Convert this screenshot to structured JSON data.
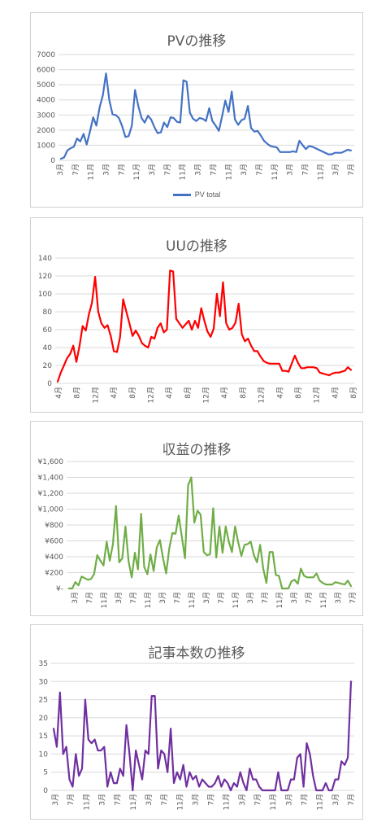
{
  "chart_data": [
    {
      "type": "line",
      "title": "PVの推移",
      "legend_position": "bottom",
      "grid": true,
      "color": "#4472c4",
      "ylim": [
        0,
        7000
      ],
      "y_ticks": [
        "0",
        "1000",
        "2000",
        "3000",
        "4000",
        "5000",
        "6000",
        "7000"
      ],
      "x_ticks": [
        "3月",
        "7月",
        "11月",
        "3月",
        "7月",
        "11月",
        "3月",
        "7月",
        "11月",
        "3月",
        "7月",
        "11月",
        "3月",
        "7月",
        "11月",
        "3月",
        "7月",
        "11月",
        "3月",
        "7月"
      ],
      "series": [
        {
          "name": "PV total",
          "values": [
            100,
            200,
            650,
            800,
            900,
            1450,
            1250,
            1750,
            1050,
            1900,
            2850,
            2300,
            3500,
            4300,
            5750,
            4000,
            3050,
            3000,
            2800,
            2250,
            1550,
            1600,
            2300,
            4650,
            3600,
            2800,
            2500,
            2950,
            2700,
            2200,
            1800,
            1850,
            2500,
            2200,
            2850,
            2800,
            2550,
            2500,
            5300,
            5200,
            3150,
            2750,
            2600,
            2800,
            2750,
            2600,
            3450,
            2600,
            2300,
            1950,
            2900,
            3950,
            3200,
            4550,
            2700,
            2350,
            2650,
            2750,
            3600,
            2150,
            1900,
            1950,
            1650,
            1300,
            1100,
            950,
            900,
            850,
            550,
            550,
            550,
            550,
            600,
            550,
            1300,
            1000,
            750,
            950,
            900,
            800,
            700,
            600,
            500,
            400,
            400,
            500,
            500,
            500,
            600,
            700,
            650
          ]
        }
      ]
    },
    {
      "type": "line",
      "title": "UUの推移",
      "grid": true,
      "color": "#ff0000",
      "ylim": [
        0,
        140
      ],
      "y_ticks": [
        "0",
        "20",
        "40",
        "60",
        "80",
        "100",
        "120",
        "140"
      ],
      "x_ticks": [
        "4月",
        "8月",
        "12月",
        "4月",
        "8月",
        "12月",
        "4月",
        "8月",
        "12月",
        "4月",
        "8月",
        "12月",
        "4月",
        "8月",
        "12月",
        "4月",
        "8月"
      ],
      "series": [
        {
          "values": [
            2,
            12,
            20,
            28,
            33,
            42,
            24,
            42,
            64,
            59,
            77,
            90,
            119,
            80,
            67,
            62,
            65,
            53,
            36,
            35,
            52,
            94,
            80,
            67,
            53,
            59,
            53,
            45,
            42,
            40,
            52,
            50,
            62,
            67,
            57,
            60,
            126,
            125,
            72,
            67,
            62,
            66,
            70,
            60,
            70,
            62,
            84,
            70,
            58,
            52,
            61,
            100,
            75,
            113,
            67,
            60,
            62,
            68,
            89,
            55,
            47,
            50,
            42,
            36,
            36,
            30,
            25,
            23,
            22,
            22,
            22,
            22,
            14,
            14,
            13,
            22,
            31,
            23,
            17,
            17,
            18,
            18,
            18,
            17,
            12,
            11,
            10,
            9,
            11,
            12,
            12,
            13,
            14,
            18,
            15
          ]
        }
      ]
    },
    {
      "type": "line",
      "title": "収益の推移",
      "grid": true,
      "color": "#70ad47",
      "ylim": [
        0,
        1600
      ],
      "y_ticks": [
        "¥-",
        "¥200",
        "¥400",
        "¥600",
        "¥800",
        "¥1,000",
        "¥1,200",
        "¥1,400",
        "¥1,600"
      ],
      "x_ticks": [
        "3月",
        "7月",
        "11月",
        "3月",
        "7月",
        "11月",
        "3月",
        "7月",
        "11月",
        "3月",
        "7月",
        "11月",
        "3月",
        "7月",
        "11月",
        "3月",
        "7月",
        "11月",
        "3月",
        "7月"
      ],
      "series": [
        {
          "values": [
            0,
            0,
            80,
            40,
            150,
            130,
            110,
            120,
            180,
            420,
            350,
            290,
            590,
            350,
            560,
            1040,
            330,
            380,
            780,
            340,
            140,
            450,
            240,
            940,
            270,
            180,
            430,
            220,
            520,
            610,
            380,
            190,
            510,
            700,
            690,
            920,
            650,
            380,
            1300,
            1400,
            830,
            980,
            930,
            460,
            420,
            430,
            1010,
            390,
            780,
            450,
            780,
            590,
            460,
            780,
            580,
            410,
            550,
            560,
            590,
            420,
            330,
            550,
            250,
            70,
            460,
            460,
            170,
            160,
            0,
            0,
            0,
            90,
            110,
            60,
            250,
            160,
            140,
            140,
            140,
            190,
            100,
            70,
            50,
            50,
            50,
            80,
            70,
            60,
            50,
            100,
            30
          ]
        }
      ]
    },
    {
      "type": "line",
      "title": "記事本数の推移",
      "grid": true,
      "color": "#7030a0",
      "ylim": [
        0,
        35
      ],
      "y_ticks": [
        "0",
        "5",
        "10",
        "15",
        "20",
        "25",
        "30",
        "35"
      ],
      "x_ticks": [
        "3月",
        "7月",
        "11月",
        "3月",
        "7月",
        "11月",
        "3月",
        "7月",
        "11月",
        "3月",
        "7月",
        "11月",
        "3月",
        "7月",
        "11月",
        "3月",
        "7月",
        "11月",
        "3月",
        "7月"
      ],
      "series": [
        {
          "values": [
            17,
            12,
            27,
            10,
            12,
            3,
            1,
            10,
            4,
            6,
            25,
            14,
            13,
            14,
            11,
            11,
            12,
            1,
            5,
            2,
            2,
            6,
            4,
            18,
            10,
            0,
            11,
            7,
            3,
            11,
            10,
            26,
            26,
            6,
            11,
            10,
            5,
            17,
            2,
            5,
            3,
            7,
            1,
            5,
            3,
            4,
            1,
            3,
            2,
            1,
            1,
            2,
            4,
            1,
            3,
            2,
            0,
            2,
            1,
            5,
            2,
            0,
            6,
            3,
            3,
            1,
            0,
            0,
            0,
            0,
            0,
            5,
            0,
            0,
            0,
            3,
            3,
            9,
            10,
            1,
            13,
            10,
            4,
            0,
            0,
            0,
            2,
            0,
            0,
            3,
            3,
            8,
            7,
            9,
            30
          ]
        }
      ]
    }
  ]
}
